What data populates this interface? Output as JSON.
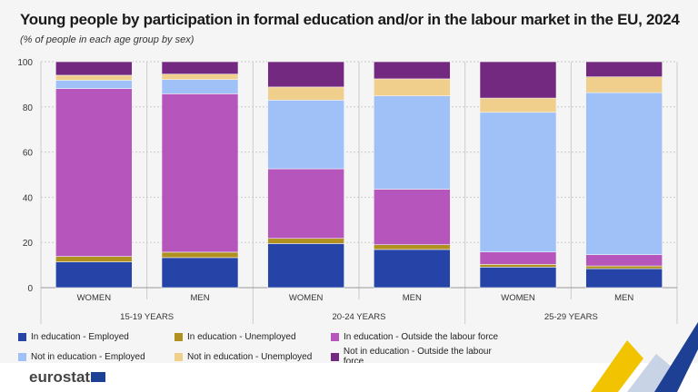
{
  "title": "Young people by participation in formal education and/or in the labour market in the EU, 2024",
  "subtitle": "(% of people in each age group by sex)",
  "logo": "eurostat",
  "chart_data": {
    "type": "bar",
    "stacked": true,
    "ylim": [
      0,
      100
    ],
    "yticks": [
      0,
      20,
      40,
      60,
      80,
      100
    ],
    "grid": true,
    "categories": [
      "WOMEN",
      "MEN",
      "WOMEN",
      "MEN",
      "WOMEN",
      "MEN"
    ],
    "groups": [
      "15-19 YEARS",
      "20-24 YEARS",
      "25-29 YEARS"
    ],
    "legend_position": "bottom",
    "series": [
      {
        "name": "In education - Employed",
        "color": "#2644a7",
        "values": [
          11.4,
          13.3,
          19.5,
          16.9,
          9.1,
          8.4
        ]
      },
      {
        "name": "In education - Unemployed",
        "color": "#b09120",
        "values": [
          2.4,
          2.4,
          2.3,
          2.1,
          1.2,
          1.2
        ]
      },
      {
        "name": "In education - Outside the labour force",
        "color": "#b656bd",
        "values": [
          74.3,
          70.1,
          30.8,
          24.6,
          5.5,
          5.0
        ]
      },
      {
        "name": "Not in education - Employed",
        "color": "#a0c0f8",
        "values": [
          3.7,
          6.3,
          30.4,
          41.3,
          61.8,
          71.7
        ]
      },
      {
        "name": "Not in education - Unemployed",
        "color": "#f0cf8c",
        "values": [
          2.2,
          2.4,
          5.8,
          7.5,
          6.3,
          7.0
        ]
      },
      {
        "name": "Not in education - Outside the labour force",
        "color": "#72297f",
        "values": [
          6.0,
          5.5,
          11.2,
          7.6,
          16.1,
          6.7
        ]
      }
    ]
  }
}
